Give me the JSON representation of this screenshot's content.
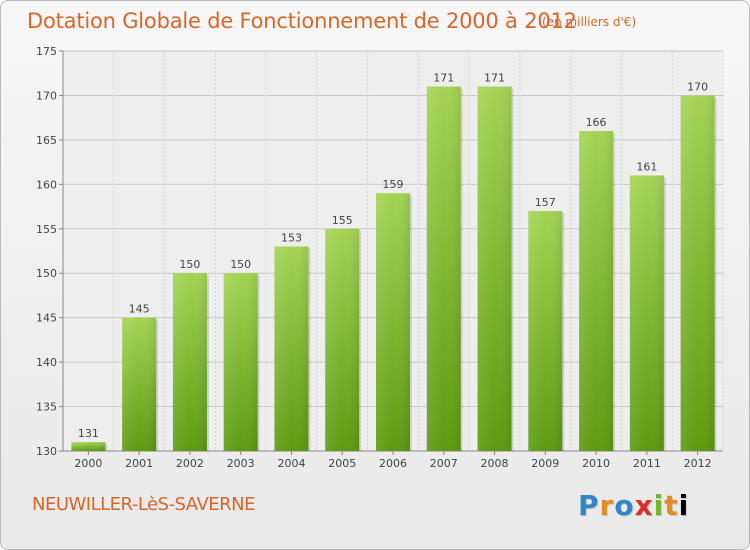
{
  "chart_data": {
    "type": "bar",
    "title": "Dotation Globale de Fonctionnement de 2000 à 2012",
    "subtitle": "(en milliers d'€)",
    "categories": [
      "2000",
      "2001",
      "2002",
      "2003",
      "2004",
      "2005",
      "2006",
      "2007",
      "2008",
      "2009",
      "2010",
      "2011",
      "2012"
    ],
    "values": [
      131,
      145,
      150,
      150,
      153,
      155,
      159,
      171,
      171,
      157,
      166,
      161,
      170
    ],
    "ylim": [
      130,
      175
    ],
    "yticks": [
      130,
      135,
      140,
      145,
      150,
      155,
      160,
      165,
      170,
      175
    ],
    "grid": true,
    "bar_color_top": "#9ed04c",
    "bar_color_bottom": "#5f9e12"
  },
  "footer": {
    "commune": "NEUWILLER-LèS-SAVERNE"
  },
  "logo": {
    "letters": [
      "P",
      "r",
      "o",
      "x",
      "i",
      "t",
      "i"
    ]
  }
}
